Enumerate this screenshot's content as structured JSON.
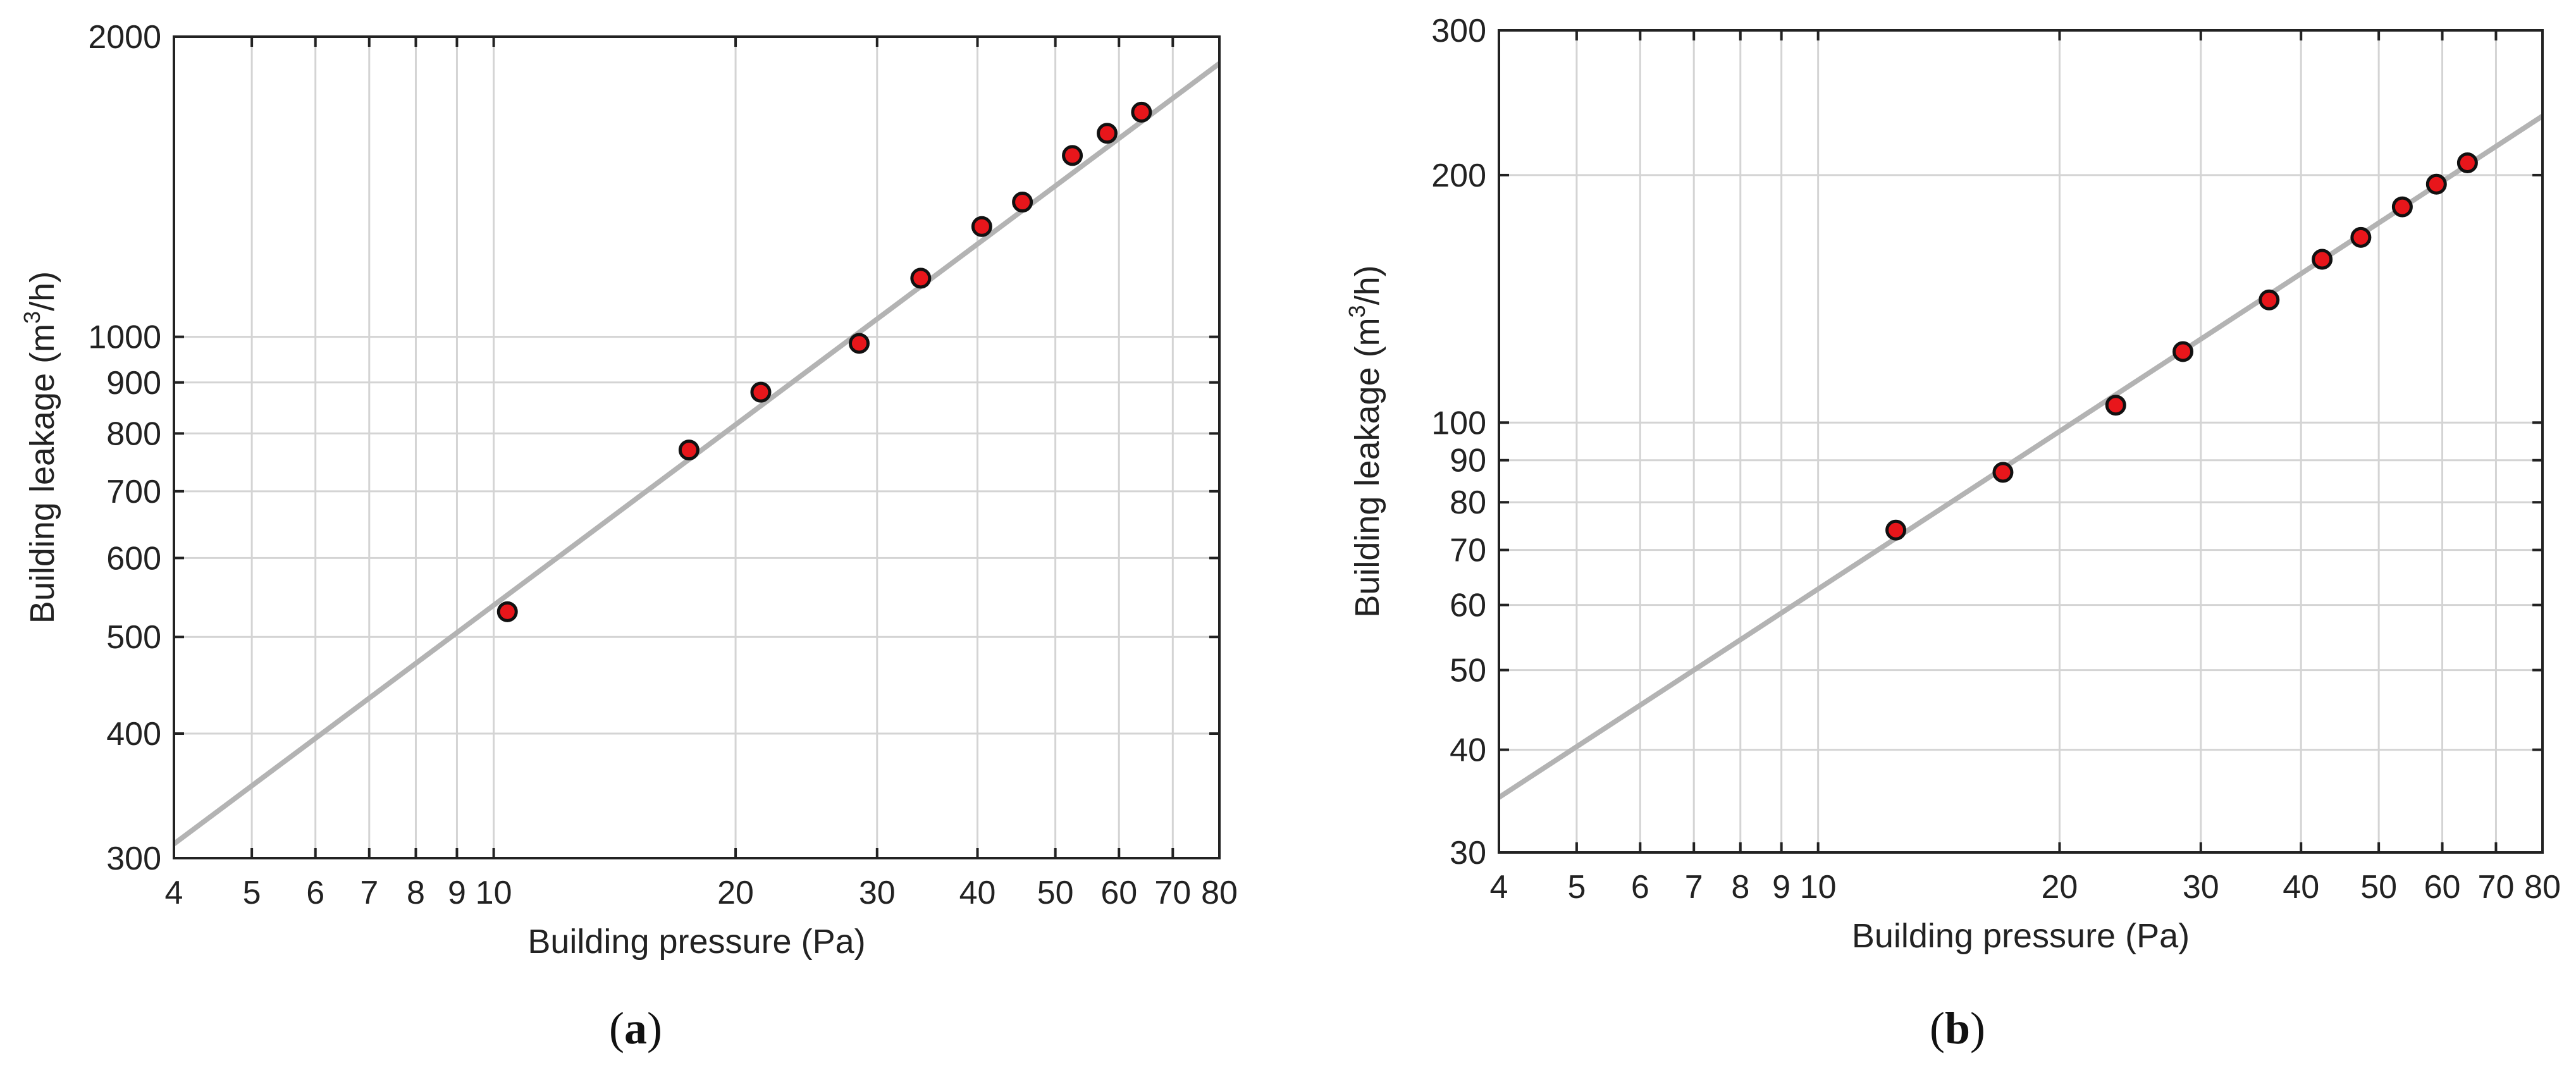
{
  "chart_data": [
    {
      "type": "scatter",
      "caption_letter": "a",
      "xlabel": "Building pressure (Pa)",
      "ylabel_prefix": "Building leakage (m",
      "ylabel_sup": "3",
      "ylabel_suffix": "/h)",
      "xscale": "log",
      "yscale": "log",
      "xlim": [
        4,
        80
      ],
      "ylim": [
        300,
        2000
      ],
      "grid": true,
      "x_ticks": [
        4,
        5,
        6,
        7,
        8,
        9,
        10,
        20,
        30,
        40,
        50,
        60,
        70,
        80
      ],
      "x_tick_labels": [
        "4",
        "5",
        "6",
        "7",
        "8",
        "9",
        "10",
        "20",
        "30",
        "40",
        "50",
        "60",
        "70",
        "80"
      ],
      "y_ticks": [
        300,
        400,
        500,
        600,
        700,
        800,
        900,
        1000,
        2000
      ],
      "y_tick_labels": [
        "300",
        "400",
        "500",
        "600",
        "700",
        "800",
        "900",
        "1000",
        "2000"
      ],
      "points": {
        "x": [
          10.4,
          17.5,
          21.5,
          28.5,
          34,
          40.5,
          45.5,
          52.5,
          58,
          64
        ],
        "y": [
          530,
          770,
          880,
          985,
          1145,
          1290,
          1365,
          1520,
          1600,
          1680
        ]
      },
      "fit_line": {
        "x": [
          4,
          80
        ],
        "y": [
          310,
          1880
        ]
      }
    },
    {
      "type": "scatter",
      "caption_letter": "b",
      "xlabel": "Building pressure (Pa)",
      "ylabel_prefix": "Building leakage (m",
      "ylabel_sup": "3",
      "ylabel_suffix": "/h)",
      "xscale": "log",
      "yscale": "log",
      "xlim": [
        4,
        80
      ],
      "ylim": [
        30,
        300
      ],
      "grid": true,
      "x_ticks": [
        4,
        5,
        6,
        7,
        8,
        9,
        10,
        20,
        30,
        40,
        50,
        60,
        70,
        80
      ],
      "x_tick_labels": [
        "4",
        "5",
        "6",
        "7",
        "8",
        "9",
        "10",
        "20",
        "30",
        "40",
        "50",
        "60",
        "70",
        "80"
      ],
      "y_ticks": [
        30,
        40,
        50,
        60,
        70,
        80,
        90,
        100,
        200,
        300
      ],
      "y_tick_labels": [
        "30",
        "40",
        "50",
        "60",
        "70",
        "80",
        "90",
        "100",
        "200",
        "300"
      ],
      "points": {
        "x": [
          12.5,
          17,
          23.5,
          28.5,
          36.5,
          42.5,
          47.5,
          53.5,
          59,
          64.5
        ],
        "y": [
          74,
          87,
          105,
          122,
          141,
          158,
          168,
          183,
          195,
          207
        ]
      },
      "fit_line": {
        "x": [
          4,
          80
        ],
        "y": [
          35,
          236
        ]
      }
    }
  ]
}
